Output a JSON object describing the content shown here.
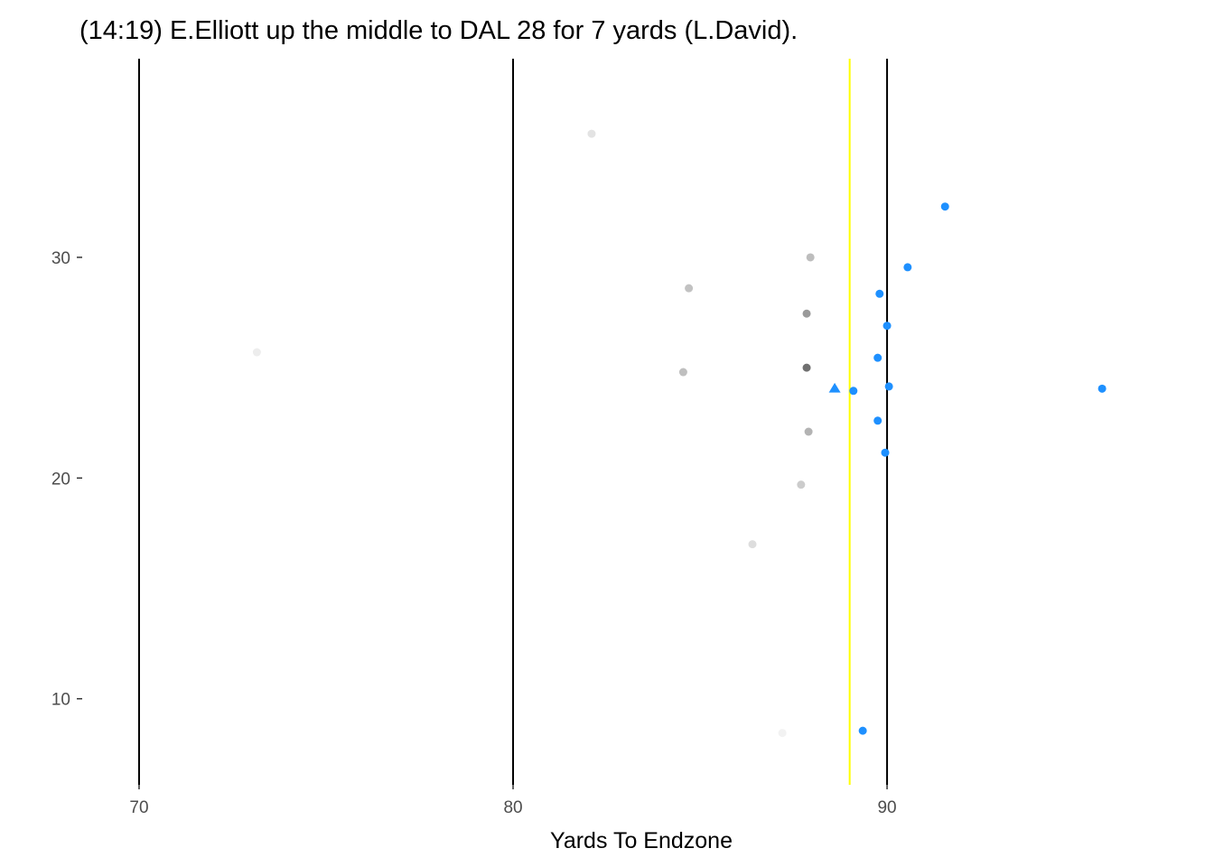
{
  "chart_data": {
    "type": "scatter",
    "title": "(14:19) E.Elliott up the middle to DAL 28 for 7 yards (L.David).",
    "xlabel": "Yards To Endzone",
    "ylabel": "",
    "xlim": [
      68.6,
      98.5
    ],
    "ylim": [
      6.1,
      39.0
    ],
    "x_ticks": [
      70,
      80,
      90
    ],
    "x_tick_labels": [
      "70",
      "80",
      "90"
    ],
    "y_ticks": [
      10,
      20,
      30
    ],
    "y_tick_labels": [
      "10",
      "20",
      "30"
    ],
    "grid": false,
    "reference_lines": [
      {
        "x": 70,
        "color": "#000000"
      },
      {
        "x": 80,
        "color": "#000000"
      },
      {
        "x": 90,
        "color": "#000000"
      },
      {
        "x": 89.0,
        "color": "#ffff00"
      }
    ],
    "series": [
      {
        "color": "#1e90ff",
        "marker": "circle",
        "points": [
          {
            "x": 91.55,
            "y": 32.3
          },
          {
            "x": 90.55,
            "y": 29.55
          },
          {
            "x": 89.8,
            "y": 28.35
          },
          {
            "x": 90.0,
            "y": 26.9
          },
          {
            "x": 89.75,
            "y": 25.45
          },
          {
            "x": 90.05,
            "y": 24.15
          },
          {
            "x": 89.1,
            "y": 23.95
          },
          {
            "x": 95.75,
            "y": 24.05
          },
          {
            "x": 89.75,
            "y": 22.6
          },
          {
            "x": 89.95,
            "y": 21.15
          },
          {
            "x": 89.35,
            "y": 8.55
          }
        ]
      },
      {
        "color": "#1e90ff",
        "marker": "triangle",
        "points": [
          {
            "x": 88.6,
            "y": 24.05
          }
        ]
      },
      {
        "color": "#808080",
        "marker": "circle",
        "points": [
          {
            "x": 82.1,
            "y": 35.6,
            "shade": "#e3e3e3"
          },
          {
            "x": 73.15,
            "y": 25.7,
            "shade": "#ededed"
          },
          {
            "x": 87.95,
            "y": 30.0,
            "shade": "#bdbdbd"
          },
          {
            "x": 84.7,
            "y": 28.6,
            "shade": "#c2c2c2"
          },
          {
            "x": 87.85,
            "y": 27.45,
            "shade": "#9a9a9a"
          },
          {
            "x": 87.85,
            "y": 25.0,
            "shade": "#707070"
          },
          {
            "x": 84.55,
            "y": 24.8,
            "shade": "#bfbfbf"
          },
          {
            "x": 87.9,
            "y": 22.1,
            "shade": "#b3b3b3"
          },
          {
            "x": 87.7,
            "y": 19.7,
            "shade": "#cccccc"
          },
          {
            "x": 86.4,
            "y": 17.0,
            "shade": "#dddddd"
          },
          {
            "x": 87.2,
            "y": 8.45,
            "shade": "#f2f2f2"
          }
        ]
      }
    ]
  }
}
